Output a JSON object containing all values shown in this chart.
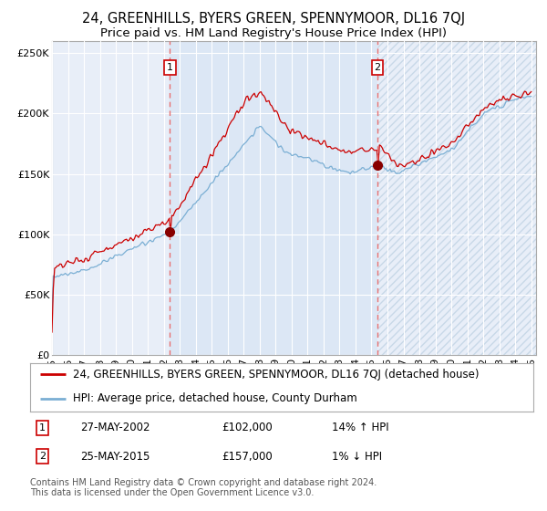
{
  "title": "24, GREENHILLS, BYERS GREEN, SPENNYMOOR, DL16 7QJ",
  "subtitle": "Price paid vs. HM Land Registry's House Price Index (HPI)",
  "legend_line1": "24, GREENHILLS, BYERS GREEN, SPENNYMOOR, DL16 7QJ (detached house)",
  "legend_line2": "HPI: Average price, detached house, County Durham",
  "sale1_date": "27-MAY-2002",
  "sale1_price": "£102,000",
  "sale1_hpi": "14% ↑ HPI",
  "sale2_date": "25-MAY-2015",
  "sale2_price": "£157,000",
  "sale2_hpi": "1% ↓ HPI",
  "footer": "Contains HM Land Registry data © Crown copyright and database right 2024.\nThis data is licensed under the Open Government Licence v3.0.",
  "y_ticks": [
    0,
    50000,
    100000,
    150000,
    200000,
    250000
  ],
  "y_tick_labels": [
    "£0",
    "£50K",
    "£100K",
    "£150K",
    "£200K",
    "£250K"
  ],
  "sale1_year": 2002.38,
  "sale2_year": 2015.38,
  "sale1_price_val": 102000,
  "sale2_price_val": 157000,
  "background_color": "#ffffff",
  "plot_bg_color": "#e8eef8",
  "shaded_region_color": "#dce7f5",
  "grid_color": "#ffffff",
  "red_line_color": "#cc0000",
  "blue_line_color": "#7bafd4",
  "dashed_line_color": "#e87070",
  "marker_color": "#880000",
  "title_fontsize": 10.5,
  "subtitle_fontsize": 9.5,
  "tick_fontsize": 8,
  "legend_fontsize": 8.5,
  "footer_fontsize": 7
}
